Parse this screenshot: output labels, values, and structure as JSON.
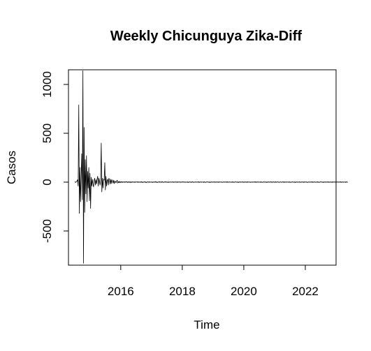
{
  "chart_data": {
    "type": "line",
    "title": "Weekly Chicunguya Zika-Diff",
    "xlabel": "Time",
    "ylabel": "Casos",
    "xlim": [
      2014.3,
      2023.0
    ],
    "ylim": [
      -850,
      1150
    ],
    "x_ticks": [
      2016,
      2018,
      2020,
      2022
    ],
    "y_ticks": [
      -500,
      0,
      500,
      1000
    ],
    "x_tick_labels": [
      "2016",
      "2018",
      "2020",
      "2022"
    ],
    "y_tick_labels": [
      "-500",
      "0",
      "500",
      "1000"
    ],
    "series": [
      {
        "name": "Zika-Diff",
        "start": 2014.5,
        "frequency": 52,
        "values": [
          0,
          2,
          -3,
          5,
          10,
          25,
          -40,
          790,
          -320,
          150,
          -200,
          40,
          290,
          -180,
          1140,
          -830,
          560,
          -310,
          230,
          -120,
          270,
          -200,
          110,
          -60,
          150,
          -190,
          90,
          -270,
          50,
          -40,
          30,
          -20,
          -50,
          20,
          40,
          -30,
          25,
          -20,
          30,
          60,
          -40,
          40,
          10,
          -30,
          20,
          400,
          -100,
          40,
          -60,
          30,
          20,
          200,
          -80,
          60,
          -40,
          20,
          30,
          -30,
          40,
          20,
          -20,
          30,
          -15,
          25,
          10,
          -10,
          20,
          -15,
          10,
          5,
          -8,
          12,
          20,
          -10,
          5,
          -5,
          8,
          -6,
          4,
          -3,
          6,
          -4,
          3,
          2,
          -3,
          4,
          -2,
          3,
          5,
          -4,
          2,
          -3,
          4,
          -2,
          3,
          -5,
          4,
          -2,
          3,
          -1,
          2,
          -3,
          4,
          -2,
          1,
          3,
          -2,
          4,
          -3,
          2,
          -1,
          3,
          -2,
          5,
          -4,
          2,
          -3,
          1,
          4,
          -2,
          3,
          -5,
          2,
          -1,
          3,
          -2,
          4,
          -3,
          2,
          1,
          -2,
          3,
          -4,
          2,
          -1,
          3,
          -2,
          6,
          -3,
          2,
          -4,
          1,
          3,
          -2,
          4,
          -1,
          2,
          -3,
          5,
          -2,
          1,
          -3,
          2,
          4,
          -2,
          3,
          -1,
          2,
          -4,
          3,
          -2,
          1,
          3,
          -2,
          2,
          -1,
          4,
          -3,
          2,
          -2,
          3,
          -1,
          2,
          -3,
          4,
          -2,
          1,
          3,
          -2,
          2,
          -3,
          1,
          4,
          -2,
          3,
          -1,
          2,
          -3,
          2,
          1,
          -2,
          3,
          -4,
          2,
          -1,
          3,
          -2,
          2,
          -3,
          4,
          -1,
          2,
          -3,
          1,
          3,
          -2,
          2,
          -1,
          3,
          -2,
          4,
          -3,
          2,
          -1,
          3,
          -2,
          1,
          2,
          -3,
          4,
          -2,
          1,
          -3,
          2,
          3,
          -1,
          2,
          -2,
          3,
          -4,
          2,
          -1,
          3,
          -2,
          2,
          -1,
          4,
          -3,
          2,
          -2,
          3,
          -1,
          2,
          -3,
          4,
          -2,
          1,
          3,
          -2,
          2,
          -3,
          1,
          3,
          -2,
          2,
          -1,
          3,
          -2,
          4,
          -3,
          2,
          -1,
          3,
          -2,
          1,
          2,
          -3,
          4,
          -2,
          1,
          -3,
          2,
          3,
          -1,
          2,
          -2,
          3,
          -4,
          2,
          -1,
          3,
          -2,
          2,
          -1,
          4,
          -3,
          2,
          -2,
          3,
          -1,
          2,
          -3,
          4,
          -2,
          1,
          3,
          -2,
          2,
          -3,
          1,
          3,
          -2,
          2,
          -1,
          3,
          -2,
          4,
          -3,
          2,
          -1,
          3,
          -2,
          1,
          2,
          -3,
          4,
          -2,
          1,
          -3,
          2,
          3,
          -1,
          2,
          -2,
          3,
          -4,
          2,
          -1,
          3,
          -2,
          2,
          -1,
          4,
          -3,
          2,
          -2,
          3,
          -1,
          2,
          -3,
          4,
          -2,
          1,
          3,
          -2,
          2,
          -3,
          1,
          3,
          -2,
          2,
          -1,
          3,
          -2,
          4,
          -3,
          2,
          -1,
          3,
          -2,
          1,
          2,
          -3,
          4,
          -2,
          1,
          -3,
          2,
          3,
          -1,
          2,
          -2,
          3,
          -4,
          2,
          -1,
          3,
          -2,
          2,
          -1,
          4,
          -3,
          2,
          -2,
          3,
          -1,
          2,
          -3,
          4,
          -2,
          1,
          3,
          -2,
          2,
          -3,
          1,
          3,
          -2,
          2,
          -1,
          3,
          -2,
          4,
          -3,
          2,
          -1,
          3,
          -2,
          1,
          2,
          -3,
          4,
          -2,
          1,
          -3,
          2,
          3,
          -1,
          2,
          -2,
          3,
          -4,
          2,
          -1,
          3,
          -2,
          2,
          -1,
          4,
          -3,
          2,
          -2,
          3,
          -1,
          2,
          -3,
          4,
          -2,
          1,
          3,
          -2,
          2,
          -3,
          1,
          3,
          -2,
          2,
          -1,
          3,
          -2,
          4,
          -3,
          2,
          -1,
          3,
          -2,
          1,
          2,
          -3,
          4,
          -2,
          1,
          0
        ]
      }
    ]
  }
}
